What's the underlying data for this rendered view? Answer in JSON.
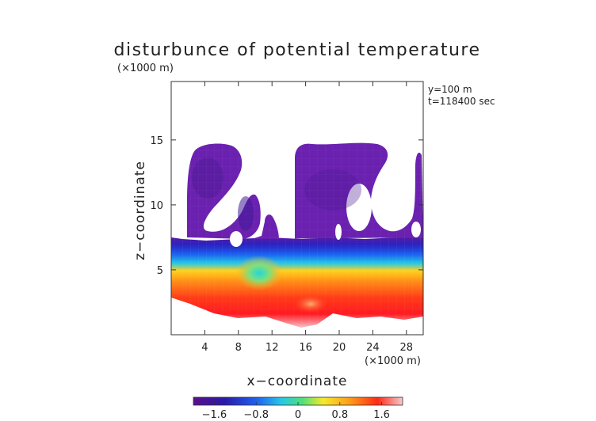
{
  "chart_data": {
    "type": "heatmap",
    "title": "disturbunce of potential temperature",
    "unit_label": "(×1000 m)",
    "xlabel": "x−coordinate",
    "xunit_label": "(×1000 m)",
    "ylabel": "z−coordinate",
    "annotations": [
      "y=100 m",
      "t=118400 sec"
    ],
    "xlim": [
      0,
      30
    ],
    "ylim": [
      0,
      19.5
    ],
    "xticks": [
      4,
      8,
      12,
      16,
      20,
      24,
      28
    ],
    "xtick_labels": [
      "4",
      "8",
      "12",
      "16",
      "20",
      "24",
      "28"
    ],
    "yticks": [
      5,
      10,
      15
    ],
    "ytick_labels": [
      "5",
      "10",
      "15"
    ],
    "colorbar": {
      "range": [
        -2.0,
        2.0
      ],
      "ticks": [
        -1.6,
        -0.8,
        0,
        0.8,
        1.6
      ],
      "tick_labels": [
        "−1.6",
        "−0.8",
        "0",
        "0.8",
        "1.6"
      ],
      "colors": [
        "#5a0f8c",
        "#2a1aa8",
        "#1e5ff0",
        "#26c8e6",
        "#4fe07a",
        "#f5ea2a",
        "#ff9a18",
        "#ff2a16",
        "#f7c8cf"
      ]
    },
    "regions": [
      {
        "name": "upper negative band",
        "x_range": [
          1.5,
          30
        ],
        "z_range": [
          6.5,
          15.3
        ],
        "value": -2.0
      },
      {
        "name": "mid transition band",
        "x_range": [
          0,
          30
        ],
        "z_range": [
          5.5,
          7.0
        ],
        "value": -1.0
      },
      {
        "name": "positive lower band",
        "x_range": [
          0,
          30
        ],
        "z_range": [
          1.0,
          5.5
        ],
        "value": 1.6
      },
      {
        "name": "cool pocket",
        "x": 10.5,
        "z": 4.7,
        "value": 0.2
      }
    ]
  }
}
